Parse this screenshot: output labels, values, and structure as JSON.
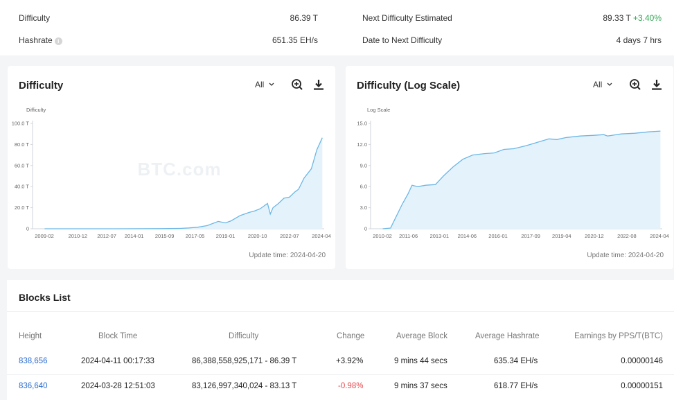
{
  "stats": {
    "difficulty_label": "Difficulty",
    "difficulty_value": "86.39 T",
    "hashrate_label": "Hashrate",
    "hashrate_value": "651.35 EH/s",
    "next_label": "Next Difficulty Estimated",
    "next_value": "89.33 T",
    "next_change": "+3.40%",
    "date_label": "Date to Next Difficulty",
    "date_value": "4 days 7 hrs",
    "info_icon": "i"
  },
  "charts": [
    {
      "title": "Difficulty",
      "range": "All",
      "unit_label": "Difficulty",
      "update": "Update time: 2024-04-20",
      "watermark": "BTC.com"
    },
    {
      "title": "Difficulty (Log Scale)",
      "range": "All",
      "unit_label": "Log Scale",
      "update": "Update time: 2024-04-20",
      "watermark": "BTC.com"
    }
  ],
  "chart_data": [
    {
      "type": "area",
      "title": "Difficulty",
      "ylabel": "Difficulty",
      "y_ticks": [
        "0",
        "20.0 T",
        "40.0 T",
        "60.0 T",
        "80.0 T",
        "100.0 T"
      ],
      "x_ticks": [
        "2009-02",
        "2010-12",
        "2012-07",
        "2014-01",
        "2015-09",
        "2017-05",
        "2019-01",
        "2020-10",
        "2022-07",
        "2024-04"
      ],
      "ylim": [
        0,
        100
      ],
      "x": [
        2009.1,
        2013.0,
        2015.5,
        2016.5,
        2017.0,
        2017.5,
        2018.0,
        2018.6,
        2019.0,
        2019.3,
        2019.8,
        2020.3,
        2020.6,
        2020.9,
        2021.3,
        2021.45,
        2021.6,
        2021.9,
        2022.2,
        2022.5,
        2022.8,
        2023.0,
        2023.3,
        2023.7,
        2024.0,
        2024.3
      ],
      "values": [
        0,
        0.02,
        0.1,
        0.3,
        0.8,
        1.5,
        3.0,
        7.0,
        5.6,
        7.5,
        12.5,
        15.5,
        17.0,
        19.0,
        24.0,
        14.0,
        20.0,
        24.0,
        29.0,
        30.0,
        35.0,
        37.5,
        48.0,
        57.0,
        75.0,
        86.4
      ],
      "grid": false,
      "legend": "none"
    },
    {
      "type": "area",
      "title": "Difficulty (Log Scale)",
      "ylabel": "Log Scale",
      "y_ticks": [
        "0",
        "3.0",
        "6.0",
        "9.0",
        "12.0",
        "15.0"
      ],
      "x_ticks": [
        "2010-02",
        "2011-06",
        "2013-01",
        "2014-06",
        "2016-01",
        "2017-09",
        "2019-04",
        "2020-12",
        "2022-08",
        "2024-04"
      ],
      "ylim": [
        0,
        15
      ],
      "x": [
        2010.1,
        2010.5,
        2010.8,
        2011.1,
        2011.4,
        2011.6,
        2011.9,
        2012.3,
        2012.8,
        2013.2,
        2013.7,
        2014.2,
        2014.7,
        2015.3,
        2015.8,
        2016.3,
        2016.8,
        2017.4,
        2018.0,
        2018.6,
        2019.0,
        2019.5,
        2020.2,
        2020.9,
        2021.4,
        2021.6,
        2022.3,
        2023.0,
        2023.7,
        2024.3
      ],
      "values": [
        0,
        0.1,
        1.8,
        3.5,
        5.0,
        6.2,
        6.0,
        6.2,
        6.3,
        7.5,
        8.8,
        9.9,
        10.5,
        10.7,
        10.8,
        11.3,
        11.4,
        11.8,
        12.3,
        12.8,
        12.7,
        13.0,
        13.2,
        13.3,
        13.4,
        13.2,
        13.5,
        13.6,
        13.8,
        13.9
      ],
      "grid": false,
      "legend": "none"
    }
  ],
  "blocks": {
    "title": "Blocks List",
    "headers": [
      "Height",
      "Block Time",
      "Difficulty",
      "Change",
      "Average Block",
      "Average Hashrate",
      "Earnings by PPS/T(BTC)"
    ],
    "rows": [
      {
        "height": "838,656",
        "time": "2024-04-11 00:17:33",
        "difficulty": "86,388,558,925,171 - 86.39 T",
        "change": "+3.92%",
        "change_dir": "up",
        "avg_block": "9 mins 44 secs",
        "avg_hash": "635.34 EH/s",
        "earnings": "0.00000146"
      },
      {
        "height": "836,640",
        "time": "2024-03-28 12:51:03",
        "difficulty": "83,126,997,340,024 - 83.13 T",
        "change": "-0.98%",
        "change_dir": "down",
        "avg_block": "9 mins 37 secs",
        "avg_hash": "618.77 EH/s",
        "earnings": "0.00000151"
      }
    ]
  },
  "colors": {
    "line": "#6bb7e6",
    "fill": "#e4f2fb",
    "positive": "#33a853",
    "negative": "#e5484d",
    "link": "#2a6bd1"
  },
  "icons": [
    "chevron-down-icon",
    "zoom-in-icon",
    "download-icon",
    "info-icon"
  ]
}
